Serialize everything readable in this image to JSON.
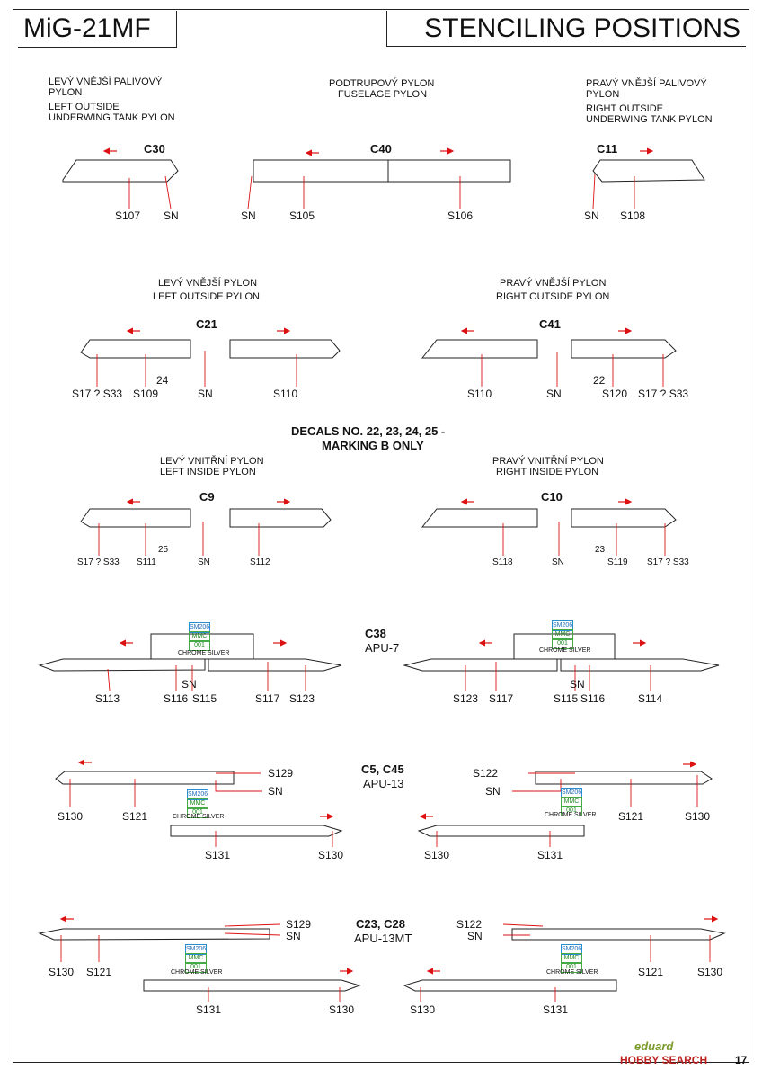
{
  "header": {
    "model": "MiG-21MF",
    "title": "STENCILING POSITIONS"
  },
  "section1": {
    "left_title": [
      "LEVÝ VNĚJŠÍ PALIVOVÝ",
      "PYLON",
      "LEFT OUTSIDE",
      "UNDERWING TANK PYLON"
    ],
    "center_title": [
      "PODTRUPOVÝ PYLON",
      "FUSELAGE PYLON"
    ],
    "right_title": [
      "PRAVÝ VNĚJŠÍ PALIVOVÝ",
      "PYLON",
      "RIGHT OUTSIDE",
      "UNDERWING TANK PYLON"
    ],
    "c30": "C30",
    "c40": "C40",
    "c11": "C11",
    "labels": [
      "S107",
      "SN",
      "SN",
      "S105",
      "S106",
      "SN",
      "S108"
    ]
  },
  "section2": {
    "left_title": [
      "LEVÝ VNĚJŠÍ PYLON",
      "LEFT OUTSIDE PYLON"
    ],
    "right_title": [
      "PRAVÝ VNĚJŠÍ PYLON",
      "RIGHT OUTSIDE PYLON"
    ],
    "c21": "C21",
    "c41": "C41",
    "labels": [
      "S17 ? S33",
      "S109",
      "24",
      "SN",
      "S110",
      "S110",
      "SN",
      "22",
      "S120",
      "S17 ? S33"
    ]
  },
  "decals_note": [
    "DECALS NO. 22, 23, 24, 25 -",
    "MARKING B ONLY"
  ],
  "section3": {
    "left_title": [
      "LEVÝ VNITŘNÍ PYLON",
      "LEFT INSIDE PYLON"
    ],
    "right_title": [
      "PRAVÝ VNITŘNÍ PYLON",
      "RIGHT INSIDE PYLON"
    ],
    "c9": "C9",
    "c10": "C10",
    "labels": [
      "S17 ? S33",
      "S111",
      "25",
      "SN",
      "S112",
      "S118",
      "SN",
      "23",
      "S119",
      "S17 ? S33"
    ]
  },
  "paint": {
    "code": "SM206",
    "mmc": "MMC",
    "num": "001",
    "name": "CHROME SILVER"
  },
  "section4": {
    "title": "C38",
    "subtitle": "APU-7",
    "labels": [
      "S113",
      "S116",
      "SN",
      "S115",
      "S117",
      "S123",
      "S123",
      "S117",
      "S115",
      "SN",
      "S116",
      "S114"
    ]
  },
  "section5": {
    "title": "C5, C45",
    "subtitle": "APU-13",
    "labels": [
      "S129",
      "SN",
      "S130",
      "S121",
      "S131",
      "S130",
      "S122",
      "SN",
      "S121",
      "S130",
      "S130",
      "S131"
    ]
  },
  "section6": {
    "title": "C23, C28",
    "subtitle": "APU-13MT",
    "labels": [
      "S129",
      "SN",
      "S130",
      "S121",
      "S131",
      "S130",
      "S122",
      "SN",
      "S121",
      "S130",
      "S130",
      "S131"
    ]
  },
  "footer": {
    "brand": "eduard",
    "watermark": "HOBBY SEARCH",
    "page": "17"
  }
}
